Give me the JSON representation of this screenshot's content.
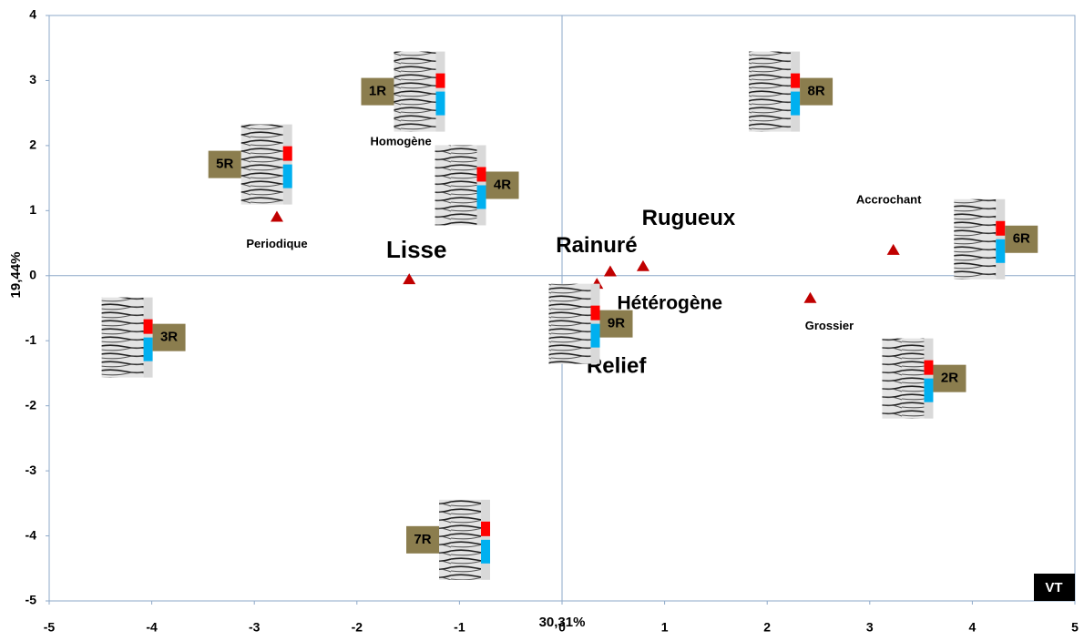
{
  "chart_data": {
    "type": "scatter",
    "x_label": "30,31%",
    "y_label": "19,44%",
    "corner_label": "VT",
    "xlim": [
      -5,
      5
    ],
    "ylim": [
      -5,
      4
    ],
    "xticks": [
      -5,
      -4,
      -3,
      -2,
      -1,
      0,
      1,
      2,
      3,
      4,
      5
    ],
    "yticks": [
      4,
      3,
      2,
      1,
      0,
      -1,
      -2,
      -3,
      -4,
      -5
    ],
    "series": [
      {
        "marker": "triangle",
        "color": "#c00000",
        "labels": [
          "Periodique",
          "Homogène",
          "Lisse",
          "Rainuré",
          "Rugueux",
          "Hétérogène",
          "Relief",
          "Accrochant",
          "Grossier"
        ],
        "x": [
          -2.78,
          -1.5,
          -1.49,
          0.47,
          0.79,
          0.34,
          0.21,
          3.23,
          2.42
        ],
        "y": [
          0.9,
          2.35,
          -0.06,
          0.06,
          0.14,
          -0.13,
          -0.31,
          0.39,
          -0.35
        ]
      },
      {
        "marker": "diamond",
        "color": "#4f81bd",
        "x": [
          0.31
        ],
        "y": [
          -0.77
        ]
      },
      {
        "marker": "thumbnail",
        "color": "#8b7d4e",
        "labels": [
          "1R",
          "8R",
          "5R",
          "4R",
          "6R",
          "3R",
          "9R",
          "2R",
          "7R"
        ],
        "x": [
          -1.39,
          2.07,
          -2.88,
          -0.99,
          4.07,
          -4.24,
          0.12,
          3.37,
          -0.95
        ],
        "y": [
          2.83,
          2.83,
          1.71,
          1.39,
          0.56,
          -0.95,
          -0.74,
          -1.58,
          -4.06
        ]
      }
    ]
  }
}
